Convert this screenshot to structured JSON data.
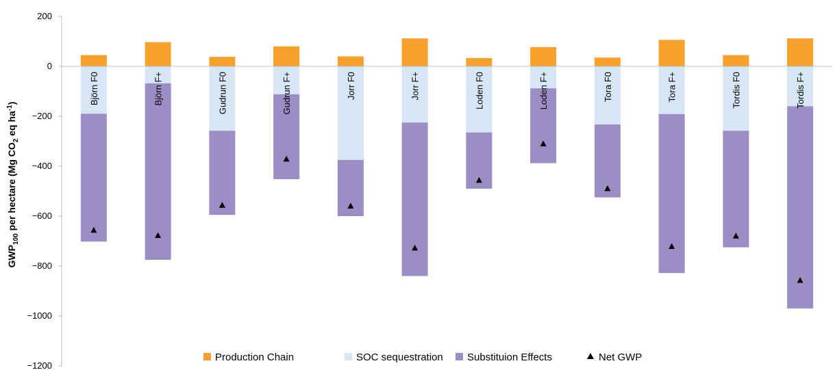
{
  "colors": {
    "production": "#F7A02C",
    "soc": "#D6E6F4",
    "substitution": "#9B8EC4",
    "net": "#000000",
    "axis": "#BFBFBF"
  },
  "chart_data": {
    "type": "bar",
    "stacked": true,
    "categories": [
      "Björn F0",
      "Björn F+",
      "Gudrun F0",
      "Gudrun F+",
      "Jorr F0",
      "Jorr F+",
      "Loden F0",
      "Loden F+",
      "Tora F0",
      "Tora F+",
      "Tordis F0",
      "Tordis F+"
    ],
    "series": [
      {
        "name": "Production Chain",
        "color_key": "production",
        "values": [
          45,
          97,
          38,
          80,
          40,
          112,
          33,
          77,
          35,
          106,
          45,
          112
        ]
      },
      {
        "name": "SOC sequestration",
        "color_key": "soc",
        "values": [
          -190,
          -68,
          -258,
          -112,
          -375,
          -225,
          -265,
          -88,
          -233,
          -191,
          -258,
          -160
        ]
      },
      {
        "name": "Substituion Effects",
        "color_key": "substitution",
        "values": [
          -512,
          -707,
          -337,
          -340,
          -225,
          -615,
          -225,
          -300,
          -292,
          -637,
          -467,
          -810
        ]
      }
    ],
    "net_gwp": {
      "name": "Net GWP",
      "marker": "triangle",
      "values": [
        -657,
        -678,
        -557,
        -372,
        -560,
        -728,
        -457,
        -311,
        -490,
        -722,
        -680,
        -858
      ]
    },
    "ylabel_prefix": "GWP",
    "ylabel_sub": "100",
    "ylabel_rest": " per hectare (Mg CO",
    "ylabel_co2_sub": "2",
    "ylabel_end": " eq ha",
    "ylabel_sup": "-1",
    "ylabel_close": ")",
    "ylim": [
      -1200,
      200
    ],
    "yticks": [
      200,
      0,
      -200,
      -400,
      -600,
      -800,
      -1000,
      -1200
    ],
    "ytick_labels": [
      "200",
      "0",
      "−200",
      "−400",
      "−600",
      "−800",
      "−1000",
      "−1200"
    ],
    "grid": false,
    "legend_position": "bottom"
  }
}
